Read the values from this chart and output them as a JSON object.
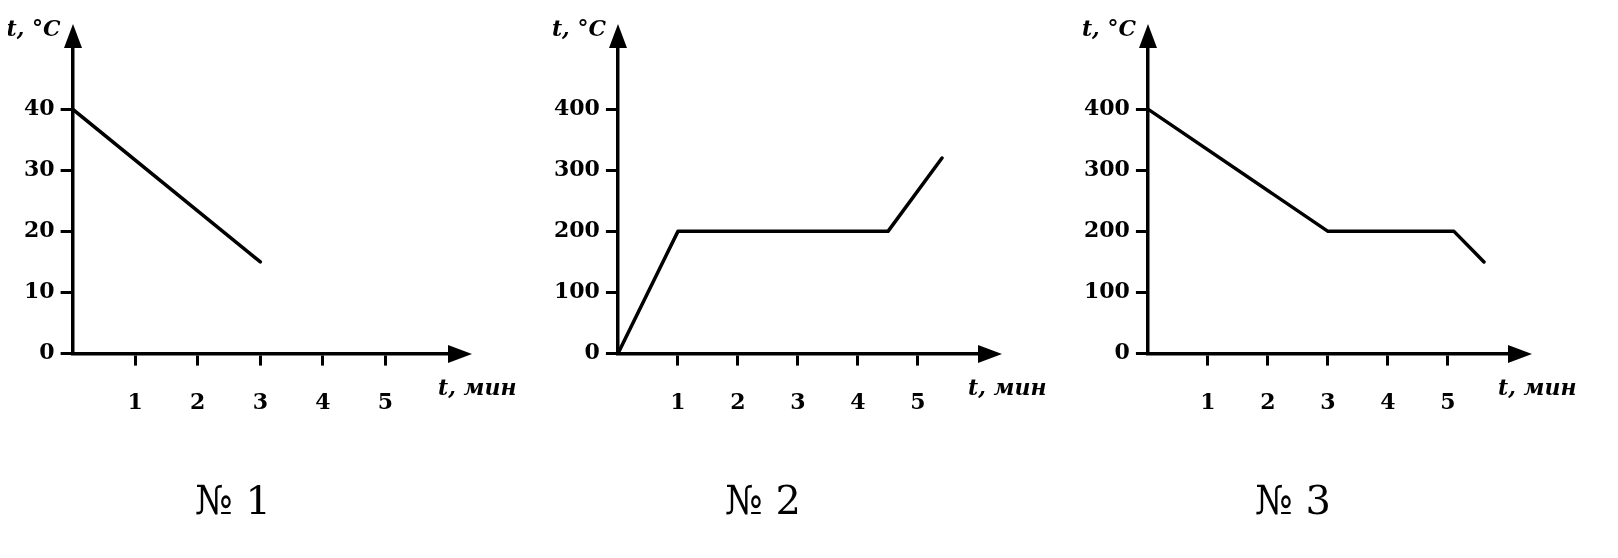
{
  "chart_data": [
    {
      "type": "line",
      "title": "№ 1",
      "xlabel": "t, мин",
      "ylabel": "t, °C",
      "x": [
        0,
        3
      ],
      "values": [
        40,
        15
      ],
      "color": "#000000",
      "marker": "none",
      "xlim": [
        0,
        6
      ],
      "ylim": [
        0,
        50
      ],
      "xticks": [
        1,
        2,
        3,
        4,
        5
      ],
      "yticks": [
        0,
        10,
        20,
        30,
        40
      ]
    },
    {
      "type": "line",
      "title": "№ 2",
      "xlabel": "t, мин",
      "ylabel": "t, °C",
      "x": [
        0,
        1,
        4.5,
        5.4
      ],
      "values": [
        0,
        200,
        200,
        320
      ],
      "color": "#000000",
      "marker": "none",
      "xlim": [
        0,
        6
      ],
      "ylim": [
        0,
        500
      ],
      "xticks": [
        1,
        2,
        3,
        4,
        5
      ],
      "yticks": [
        0,
        100,
        200,
        300,
        400
      ]
    },
    {
      "type": "line",
      "title": "№ 3",
      "xlabel": "t, мин",
      "ylabel": "t, °C",
      "x": [
        0,
        3,
        5.1,
        5.6
      ],
      "values": [
        400,
        200,
        200,
        150
      ],
      "color": "#000000",
      "marker": "none",
      "xlim": [
        0,
        6
      ],
      "ylim": [
        0,
        500
      ],
      "xticks": [
        1,
        2,
        3,
        4,
        5
      ],
      "yticks": [
        0,
        100,
        200,
        300,
        400
      ]
    }
  ]
}
